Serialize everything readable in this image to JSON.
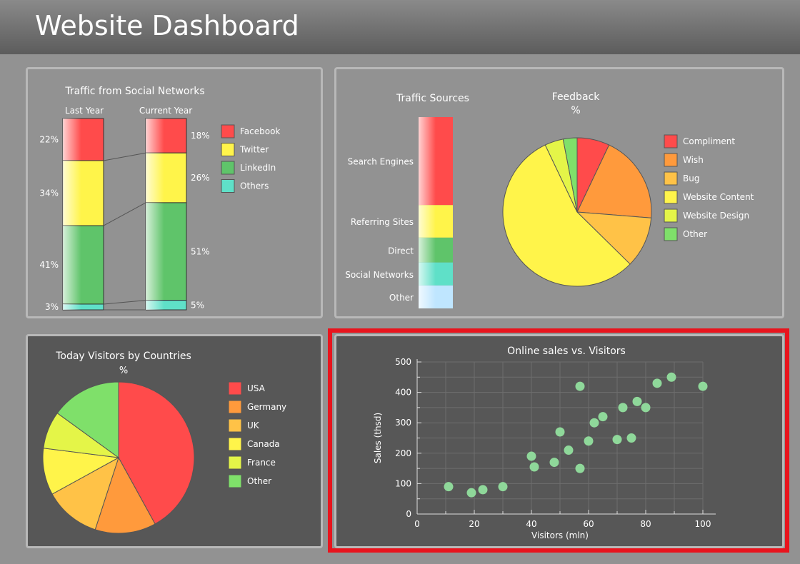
{
  "header": {
    "title": "Website Dashboard"
  },
  "social": {
    "title": "Traffic from Social Networks",
    "col_last": "Last Year",
    "col_current": "Current Year",
    "legend": [
      {
        "name": "Facebook",
        "color": "#ff4b4b"
      },
      {
        "name": "Twitter",
        "color": "#fff44a"
      },
      {
        "name": "LinkedIn",
        "color": "#5fc46a"
      },
      {
        "name": "Others",
        "color": "#5fe0c8"
      }
    ]
  },
  "traffic_sources": {
    "title": "Traffic Sources"
  },
  "feedback": {
    "title": "Feedback",
    "subtitle": "%"
  },
  "countries": {
    "title": "Today Visitors by Countries",
    "subtitle": "%"
  },
  "sales": {
    "title": "Online sales vs. Visitors"
  },
  "chart_data": [
    {
      "type": "bar",
      "title": "Traffic from Social Networks",
      "categories": [
        "Last Year",
        "Current Year"
      ],
      "series": [
        {
          "name": "Facebook",
          "color": "#ff4b4b",
          "values": [
            22,
            18
          ],
          "labels": [
            "22%",
            "18%"
          ]
        },
        {
          "name": "Twitter",
          "color": "#fff44a",
          "values": [
            34,
            26
          ],
          "labels": [
            "34%",
            "26%"
          ]
        },
        {
          "name": "LinkedIn",
          "color": "#5fc46a",
          "values": [
            41,
            51
          ],
          "labels": [
            "41%",
            "51%"
          ]
        },
        {
          "name": "Others",
          "color": "#5fe0c8",
          "values": [
            3,
            5
          ],
          "labels": [
            "3%",
            "5%"
          ]
        }
      ]
    },
    {
      "type": "bar",
      "title": "Traffic Sources",
      "categories": [
        "Search Engines",
        "Referring Sites",
        "Direct",
        "Social Networks",
        "Other"
      ],
      "values": [
        46,
        17,
        13,
        12,
        12
      ],
      "colors": [
        "#ff4b4b",
        "#fff44a",
        "#5fc46a",
        "#5fe0c8",
        "#bfe6ff"
      ]
    },
    {
      "type": "pie",
      "title": "Feedback",
      "subtitle": "%",
      "labels": [
        "Compliment",
        "Wish",
        "Bug",
        "Website Content",
        "Website Design",
        "Other"
      ],
      "values": [
        7,
        19,
        11,
        55,
        4,
        3
      ],
      "colors": [
        "#ff4b4b",
        "#ff9a3c",
        "#ffc247",
        "#fff44a",
        "#e4f548",
        "#7fe06a"
      ]
    },
    {
      "type": "pie",
      "title": "Today Visitors by Countries",
      "subtitle": "%",
      "labels": [
        "USA",
        "Germany",
        "UK",
        "Canada",
        "France",
        "Other"
      ],
      "values": [
        42,
        13,
        12,
        10,
        8,
        15
      ],
      "colors": [
        "#ff4b4b",
        "#ff9a3c",
        "#ffc247",
        "#fff44a",
        "#e4f548",
        "#7fe06a"
      ]
    },
    {
      "type": "scatter",
      "title": "Online sales vs. Visitors",
      "xlabel": "Visitors (mln)",
      "ylabel": "Sales (thsd)",
      "xlim": [
        0,
        100
      ],
      "ylim": [
        0,
        500
      ],
      "xticks": [
        0,
        20,
        40,
        60,
        80,
        100
      ],
      "yticks": [
        0,
        100,
        200,
        300,
        400,
        500
      ],
      "grid": true,
      "color": "#8fd89a",
      "x": [
        11,
        19,
        23,
        30,
        40,
        41,
        48,
        50,
        53,
        57,
        57,
        60,
        62,
        65,
        70,
        72,
        75,
        77,
        80,
        84,
        89,
        100
      ],
      "y": [
        90,
        70,
        80,
        90,
        190,
        155,
        170,
        270,
        210,
        150,
        420,
        240,
        300,
        320,
        245,
        350,
        250,
        370,
        350,
        430,
        450,
        420
      ]
    }
  ]
}
